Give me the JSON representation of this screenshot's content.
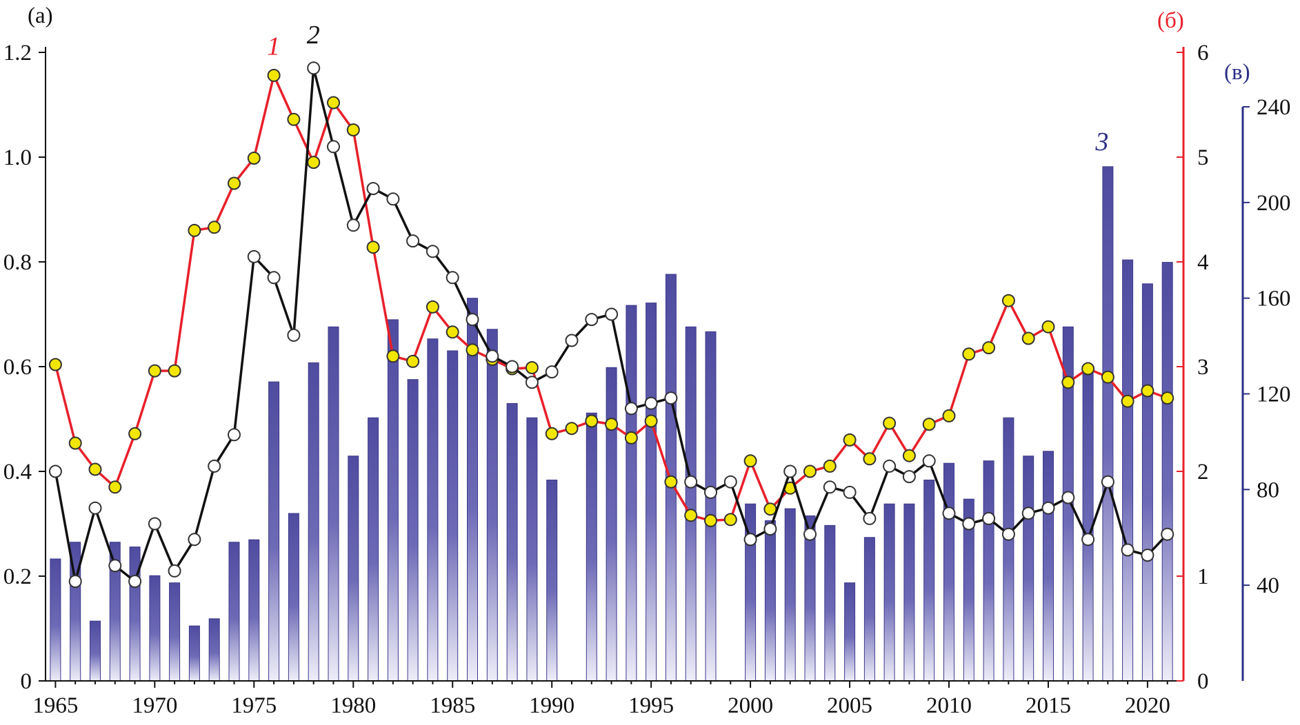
{
  "chart_data": {
    "type": "bar+line",
    "panel_labels": {
      "left": "(а)",
      "right_red": "(б)",
      "right_blue": "(в)"
    },
    "x": [
      1965,
      1966,
      1967,
      1968,
      1969,
      1970,
      1971,
      1972,
      1973,
      1974,
      1975,
      1976,
      1977,
      1978,
      1979,
      1980,
      1981,
      1982,
      1983,
      1984,
      1985,
      1986,
      1987,
      1988,
      1989,
      1990,
      1991,
      1992,
      1993,
      1994,
      1995,
      1996,
      1997,
      1998,
      1999,
      2000,
      2001,
      2002,
      2003,
      2004,
      2005,
      2006,
      2007,
      2008,
      2009,
      2010,
      2011,
      2012,
      2013,
      2014,
      2015,
      2016,
      2017,
      2018,
      2019,
      2020,
      2021
    ],
    "xlim": [
      1964.5,
      2021.6
    ],
    "x_ticks": [
      1965,
      1970,
      1975,
      1980,
      1985,
      1990,
      1995,
      2000,
      2005,
      2010,
      2015,
      2020
    ],
    "axes": {
      "left": {
        "ylim": [
          0,
          1.2
        ],
        "ticks": [
          0,
          0.2,
          0.4,
          0.6,
          0.8,
          1.0,
          1.2
        ],
        "tick_labels": [
          "0",
          "0.2",
          "0.4",
          "0.6",
          "0.8",
          "1.0",
          "1.2"
        ],
        "color": "#111111"
      },
      "right_red": {
        "ylim": [
          0,
          6
        ],
        "ticks": [
          0,
          1,
          2,
          3,
          4,
          5,
          6
        ],
        "tick_labels": [
          "0",
          "1",
          "2",
          "3",
          "4",
          "5",
          "6"
        ],
        "color": "#e8202a"
      },
      "right_blue": {
        "ylim": [
          0,
          240
        ],
        "ticks": [
          40,
          80,
          120,
          160,
          200,
          240
        ],
        "tick_labels": [
          "40",
          "80",
          "120",
          "160",
          "200",
          "240"
        ],
        "color": "#2b2f86"
      }
    },
    "series": [
      {
        "label": "1",
        "axis": "right_red",
        "kind": "line",
        "color": "#e8202a",
        "marker_fill": "#f2e600",
        "label_color": "#e8202a",
        "label_at": 1976,
        "values": [
          3.02,
          2.27,
          2.02,
          1.85,
          2.36,
          2.96,
          2.96,
          4.3,
          4.33,
          4.75,
          4.99,
          5.78,
          5.36,
          4.95,
          5.52,
          5.26,
          4.14,
          3.1,
          3.05,
          3.57,
          3.33,
          3.16,
          3.07,
          2.98,
          2.99,
          2.36,
          2.41,
          2.48,
          2.45,
          2.32,
          2.48,
          1.9,
          1.58,
          1.53,
          1.54,
          2.1,
          1.64,
          1.84,
          2.0,
          2.05,
          2.3,
          2.12,
          2.46,
          2.15,
          2.45,
          2.53,
          3.12,
          3.18,
          3.63,
          3.27,
          3.38,
          2.85,
          2.98,
          2.9,
          2.67,
          2.77,
          2.7
        ]
      },
      {
        "label": "2",
        "axis": "left",
        "kind": "line",
        "color": "#111111",
        "marker_fill": "#ffffff",
        "label_color": "#111111",
        "label_at": 1978,
        "values": [
          0.4,
          0.19,
          0.33,
          0.22,
          0.19,
          0.3,
          0.21,
          0.27,
          0.41,
          0.47,
          0.81,
          0.77,
          0.66,
          1.17,
          1.02,
          0.87,
          0.94,
          0.92,
          0.84,
          0.82,
          0.77,
          0.69,
          0.62,
          0.6,
          0.57,
          0.59,
          0.65,
          0.69,
          0.7,
          0.52,
          0.53,
          0.54,
          0.38,
          0.36,
          0.38,
          0.27,
          0.29,
          0.4,
          0.28,
          0.37,
          0.36,
          0.31,
          0.41,
          0.39,
          0.42,
          0.32,
          0.3,
          0.31,
          0.28,
          0.32,
          0.33,
          0.35,
          0.27,
          0.38,
          0.25,
          0.24,
          0.28
        ]
      },
      {
        "label": "3",
        "axis": "right_blue",
        "kind": "bar",
        "color": "#5a56a8",
        "label_color": "#2b2f86",
        "label_at": 2018,
        "values": [
          51,
          58,
          25,
          58,
          56,
          44,
          41,
          23,
          26,
          58,
          59,
          125,
          70,
          133,
          148,
          94,
          110,
          151,
          126,
          143,
          138,
          160,
          147,
          116,
          110,
          84,
          null,
          112,
          131,
          157,
          158,
          170,
          148,
          146,
          null,
          74,
          67,
          72,
          69,
          65,
          41,
          60,
          74,
          74,
          84,
          91,
          76,
          92,
          110,
          94,
          96,
          148,
          130,
          215,
          176,
          166,
          175
        ]
      }
    ]
  }
}
